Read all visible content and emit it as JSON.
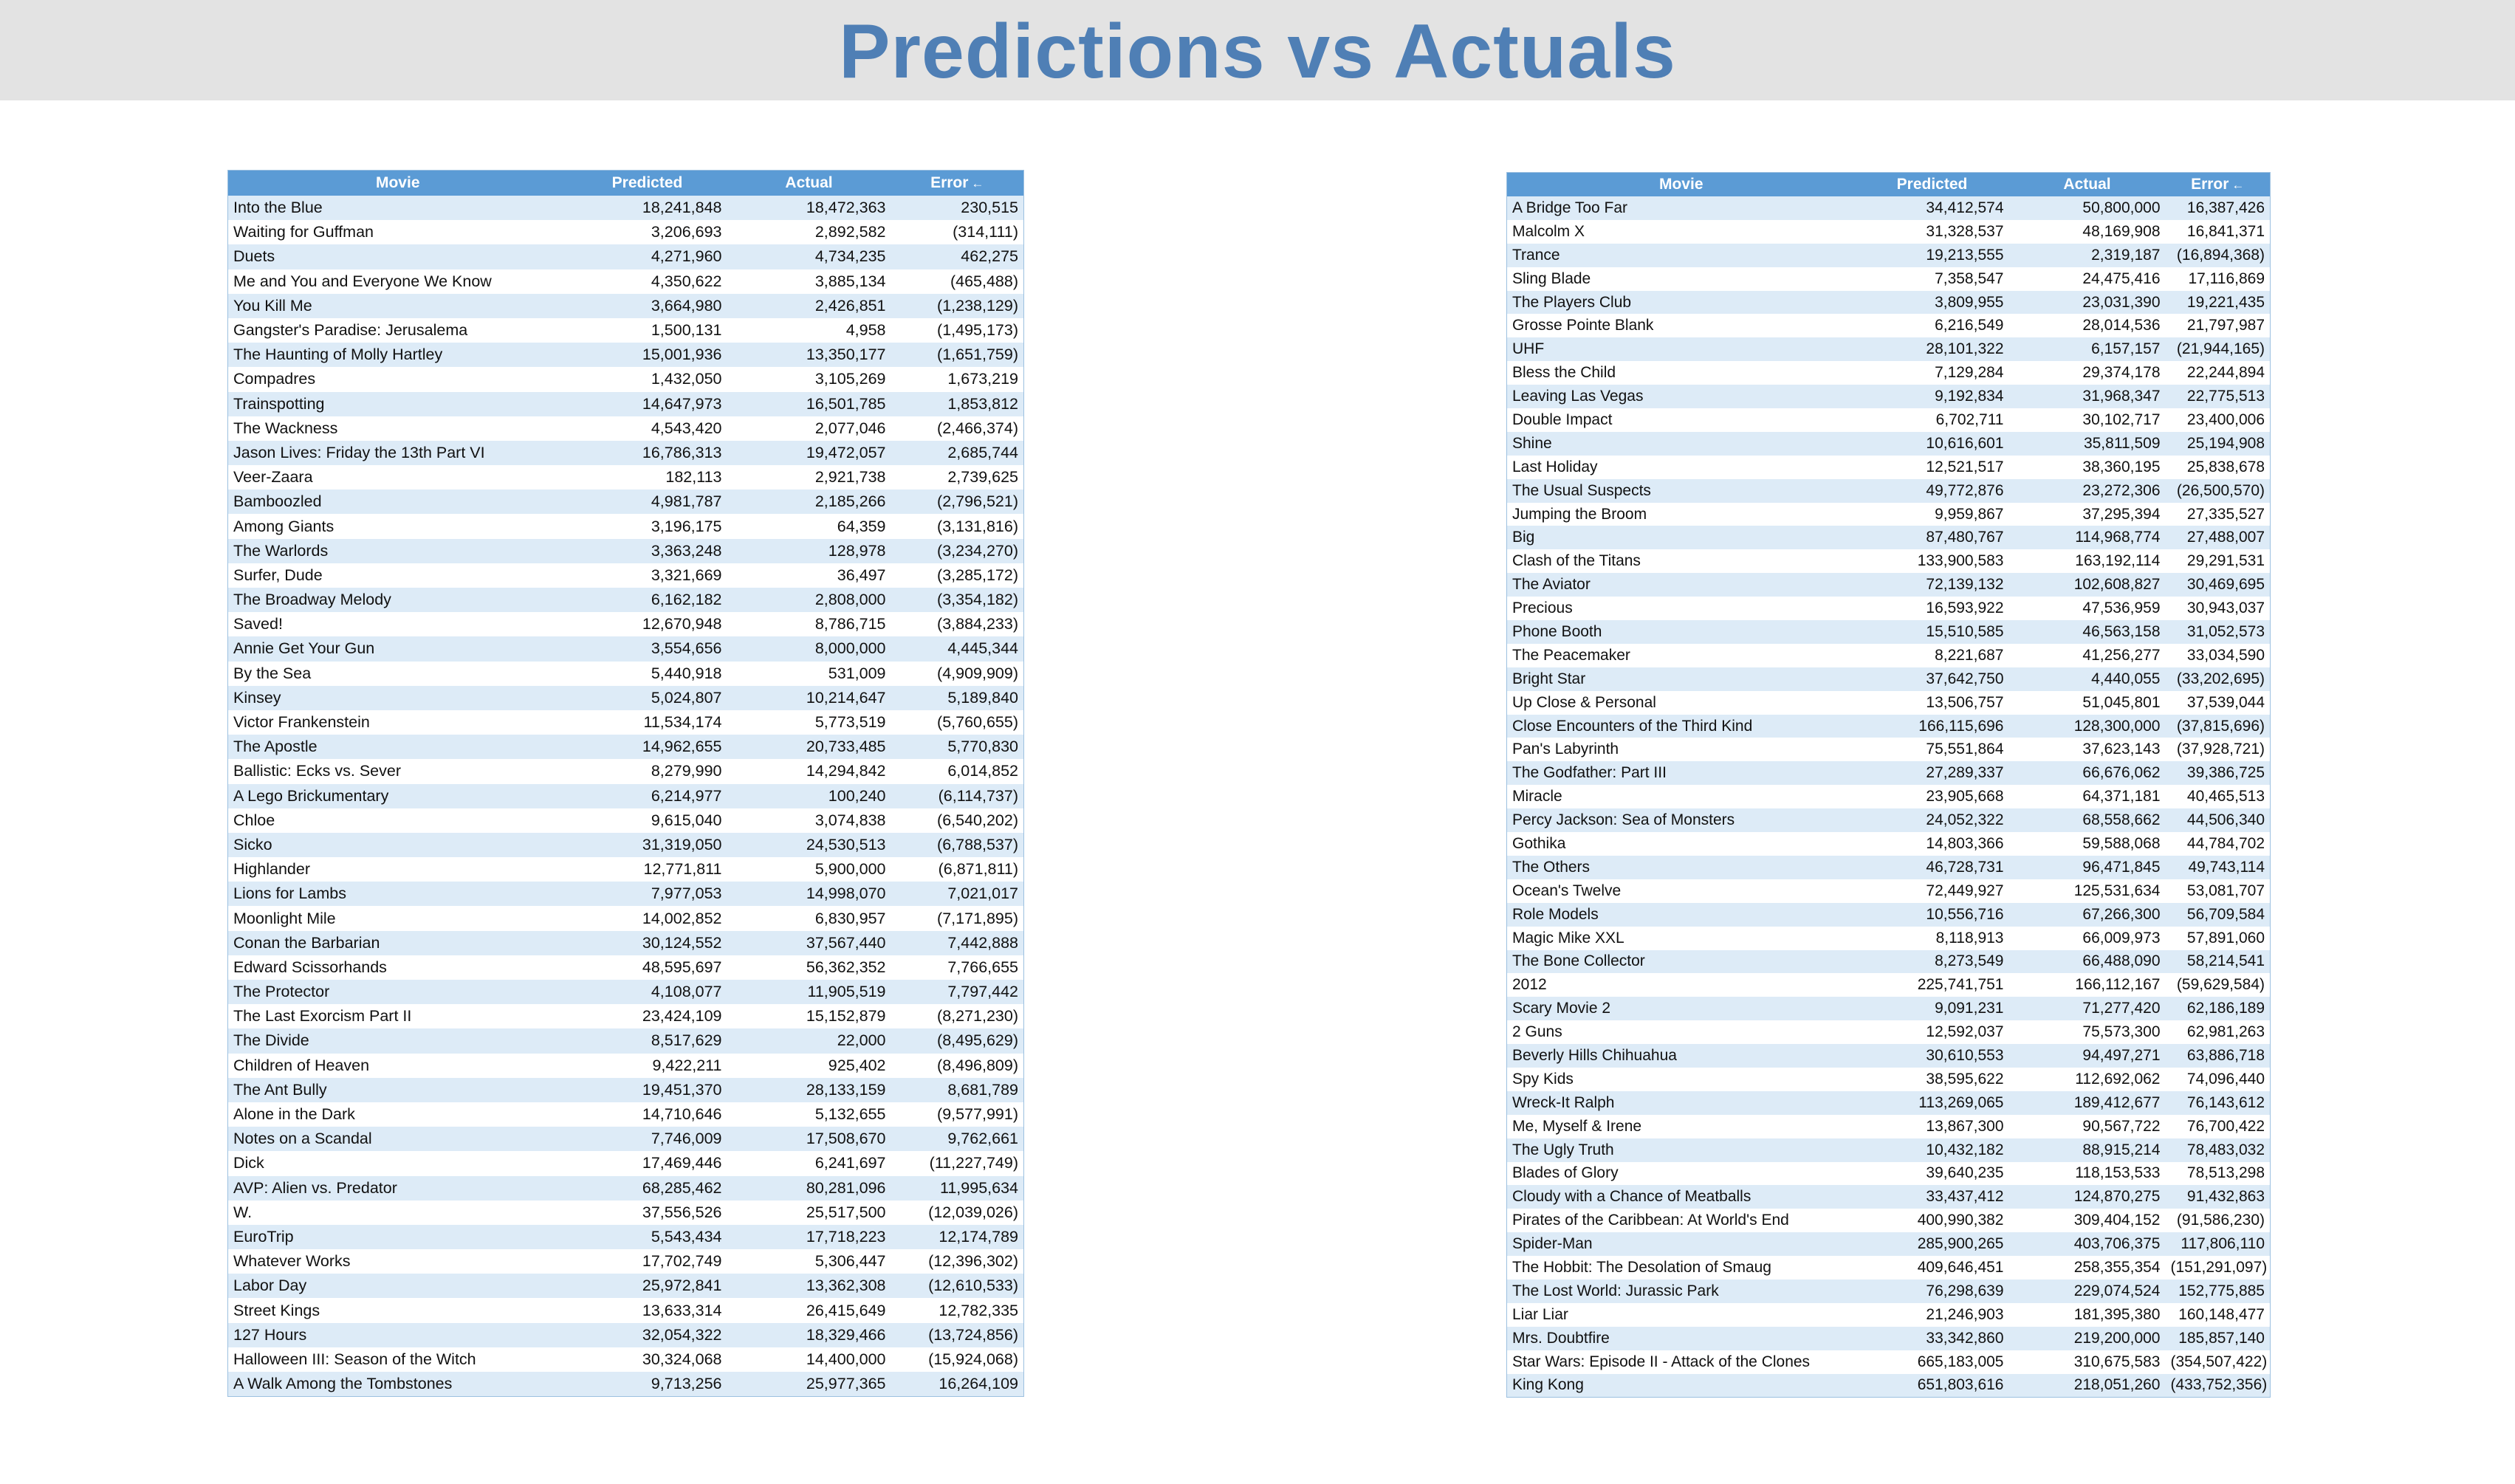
{
  "title": "Predictions vs Actuals",
  "headers": {
    "movie": "Movie",
    "predicted": "Predicted",
    "actual": "Actual",
    "error": "Error"
  },
  "left_rows": [
    [
      "Into the Blue",
      "18,241,848",
      "18,472,363",
      "230,515"
    ],
    [
      "Waiting for Guffman",
      "3,206,693",
      "2,892,582",
      "(314,111)"
    ],
    [
      "Duets",
      "4,271,960",
      "4,734,235",
      "462,275"
    ],
    [
      "Me and You and Everyone We Know",
      "4,350,622",
      "3,885,134",
      "(465,488)"
    ],
    [
      "You Kill Me",
      "3,664,980",
      "2,426,851",
      "(1,238,129)"
    ],
    [
      "Gangster's Paradise: Jerusalema",
      "1,500,131",
      "4,958",
      "(1,495,173)"
    ],
    [
      "The Haunting of Molly Hartley",
      "15,001,936",
      "13,350,177",
      "(1,651,759)"
    ],
    [
      "Compadres",
      "1,432,050",
      "3,105,269",
      "1,673,219"
    ],
    [
      "Trainspotting",
      "14,647,973",
      "16,501,785",
      "1,853,812"
    ],
    [
      "The Wackness",
      "4,543,420",
      "2,077,046",
      "(2,466,374)"
    ],
    [
      "Jason Lives: Friday the 13th Part VI",
      "16,786,313",
      "19,472,057",
      "2,685,744"
    ],
    [
      "Veer-Zaara",
      "182,113",
      "2,921,738",
      "2,739,625"
    ],
    [
      "Bamboozled",
      "4,981,787",
      "2,185,266",
      "(2,796,521)"
    ],
    [
      "Among Giants",
      "3,196,175",
      "64,359",
      "(3,131,816)"
    ],
    [
      "The Warlords",
      "3,363,248",
      "128,978",
      "(3,234,270)"
    ],
    [
      "Surfer, Dude",
      "3,321,669",
      "36,497",
      "(3,285,172)"
    ],
    [
      "The Broadway Melody",
      "6,162,182",
      "2,808,000",
      "(3,354,182)"
    ],
    [
      "Saved!",
      "12,670,948",
      "8,786,715",
      "(3,884,233)"
    ],
    [
      "Annie Get Your Gun",
      "3,554,656",
      "8,000,000",
      "4,445,344"
    ],
    [
      "By the Sea",
      "5,440,918",
      "531,009",
      "(4,909,909)"
    ],
    [
      "Kinsey",
      "5,024,807",
      "10,214,647",
      "5,189,840"
    ],
    [
      "Victor Frankenstein",
      "11,534,174",
      "5,773,519",
      "(5,760,655)"
    ],
    [
      "The Apostle",
      "14,962,655",
      "20,733,485",
      "5,770,830"
    ],
    [
      "Ballistic: Ecks vs. Sever",
      "8,279,990",
      "14,294,842",
      "6,014,852"
    ],
    [
      "A Lego Brickumentary",
      "6,214,977",
      "100,240",
      "(6,114,737)"
    ],
    [
      "Chloe",
      "9,615,040",
      "3,074,838",
      "(6,540,202)"
    ],
    [
      "Sicko",
      "31,319,050",
      "24,530,513",
      "(6,788,537)"
    ],
    [
      "Highlander",
      "12,771,811",
      "5,900,000",
      "(6,871,811)"
    ],
    [
      "Lions for Lambs",
      "7,977,053",
      "14,998,070",
      "7,021,017"
    ],
    [
      "Moonlight Mile",
      "14,002,852",
      "6,830,957",
      "(7,171,895)"
    ],
    [
      "Conan the Barbarian",
      "30,124,552",
      "37,567,440",
      "7,442,888"
    ],
    [
      "Edward Scissorhands",
      "48,595,697",
      "56,362,352",
      "7,766,655"
    ],
    [
      "The Protector",
      "4,108,077",
      "11,905,519",
      "7,797,442"
    ],
    [
      "The Last Exorcism Part II",
      "23,424,109",
      "15,152,879",
      "(8,271,230)"
    ],
    [
      "The Divide",
      "8,517,629",
      "22,000",
      "(8,495,629)"
    ],
    [
      "Children of Heaven",
      "9,422,211",
      "925,402",
      "(8,496,809)"
    ],
    [
      "The Ant Bully",
      "19,451,370",
      "28,133,159",
      "8,681,789"
    ],
    [
      "Alone in the Dark",
      "14,710,646",
      "5,132,655",
      "(9,577,991)"
    ],
    [
      "Notes on a Scandal",
      "7,746,009",
      "17,508,670",
      "9,762,661"
    ],
    [
      "Dick",
      "17,469,446",
      "6,241,697",
      "(11,227,749)"
    ],
    [
      "AVP: Alien vs. Predator",
      "68,285,462",
      "80,281,096",
      "11,995,634"
    ],
    [
      "W.",
      "37,556,526",
      "25,517,500",
      "(12,039,026)"
    ],
    [
      "EuroTrip",
      "5,543,434",
      "17,718,223",
      "12,174,789"
    ],
    [
      "Whatever Works",
      "17,702,749",
      "5,306,447",
      "(12,396,302)"
    ],
    [
      "Labor Day",
      "25,972,841",
      "13,362,308",
      "(12,610,533)"
    ],
    [
      "Street Kings",
      "13,633,314",
      "26,415,649",
      "12,782,335"
    ],
    [
      "127 Hours",
      "32,054,322",
      "18,329,466",
      "(13,724,856)"
    ],
    [
      "Halloween III: Season of the Witch",
      "30,324,068",
      "14,400,000",
      "(15,924,068)"
    ],
    [
      "A Walk Among the Tombstones",
      "9,713,256",
      "25,977,365",
      "16,264,109"
    ]
  ],
  "right_rows": [
    [
      "A Bridge Too Far",
      "34,412,574",
      "50,800,000",
      "16,387,426"
    ],
    [
      "Malcolm X",
      "31,328,537",
      "48,169,908",
      "16,841,371"
    ],
    [
      "Trance",
      "19,213,555",
      "2,319,187",
      "(16,894,368)"
    ],
    [
      "Sling Blade",
      "7,358,547",
      "24,475,416",
      "17,116,869"
    ],
    [
      "The Players Club",
      "3,809,955",
      "23,031,390",
      "19,221,435"
    ],
    [
      "Grosse Pointe Blank",
      "6,216,549",
      "28,014,536",
      "21,797,987"
    ],
    [
      "UHF",
      "28,101,322",
      "6,157,157",
      "(21,944,165)"
    ],
    [
      "Bless the Child",
      "7,129,284",
      "29,374,178",
      "22,244,894"
    ],
    [
      "Leaving Las Vegas",
      "9,192,834",
      "31,968,347",
      "22,775,513"
    ],
    [
      "Double Impact",
      "6,702,711",
      "30,102,717",
      "23,400,006"
    ],
    [
      "Shine",
      "10,616,601",
      "35,811,509",
      "25,194,908"
    ],
    [
      "Last Holiday",
      "12,521,517",
      "38,360,195",
      "25,838,678"
    ],
    [
      "The Usual Suspects",
      "49,772,876",
      "23,272,306",
      "(26,500,570)"
    ],
    [
      "Jumping the Broom",
      "9,959,867",
      "37,295,394",
      "27,335,527"
    ],
    [
      "Big",
      "87,480,767",
      "114,968,774",
      "27,488,007"
    ],
    [
      "Clash of the Titans",
      "133,900,583",
      "163,192,114",
      "29,291,531"
    ],
    [
      "The Aviator",
      "72,139,132",
      "102,608,827",
      "30,469,695"
    ],
    [
      "Precious",
      "16,593,922",
      "47,536,959",
      "30,943,037"
    ],
    [
      "Phone Booth",
      "15,510,585",
      "46,563,158",
      "31,052,573"
    ],
    [
      "The Peacemaker",
      "8,221,687",
      "41,256,277",
      "33,034,590"
    ],
    [
      "Bright Star",
      "37,642,750",
      "4,440,055",
      "(33,202,695)"
    ],
    [
      "Up Close & Personal",
      "13,506,757",
      "51,045,801",
      "37,539,044"
    ],
    [
      "Close Encounters of the Third Kind",
      "166,115,696",
      "128,300,000",
      "(37,815,696)"
    ],
    [
      "Pan's Labyrinth",
      "75,551,864",
      "37,623,143",
      "(37,928,721)"
    ],
    [
      "The Godfather: Part III",
      "27,289,337",
      "66,676,062",
      "39,386,725"
    ],
    [
      "Miracle",
      "23,905,668",
      "64,371,181",
      "40,465,513"
    ],
    [
      "Percy Jackson: Sea of Monsters",
      "24,052,322",
      "68,558,662",
      "44,506,340"
    ],
    [
      "Gothika",
      "14,803,366",
      "59,588,068",
      "44,784,702"
    ],
    [
      "The Others",
      "46,728,731",
      "96,471,845",
      "49,743,114"
    ],
    [
      "Ocean's Twelve",
      "72,449,927",
      "125,531,634",
      "53,081,707"
    ],
    [
      "Role Models",
      "10,556,716",
      "67,266,300",
      "56,709,584"
    ],
    [
      "Magic Mike XXL",
      "8,118,913",
      "66,009,973",
      "57,891,060"
    ],
    [
      "The Bone Collector",
      "8,273,549",
      "66,488,090",
      "58,214,541"
    ],
    [
      "2012",
      "225,741,751",
      "166,112,167",
      "(59,629,584)"
    ],
    [
      "Scary Movie 2",
      "9,091,231",
      "71,277,420",
      "62,186,189"
    ],
    [
      "2 Guns",
      "12,592,037",
      "75,573,300",
      "62,981,263"
    ],
    [
      "Beverly Hills Chihuahua",
      "30,610,553",
      "94,497,271",
      "63,886,718"
    ],
    [
      "Spy Kids",
      "38,595,622",
      "112,692,062",
      "74,096,440"
    ],
    [
      "Wreck-It Ralph",
      "113,269,065",
      "189,412,677",
      "76,143,612"
    ],
    [
      "Me, Myself & Irene",
      "13,867,300",
      "90,567,722",
      "76,700,422"
    ],
    [
      "The Ugly Truth",
      "10,432,182",
      "88,915,214",
      "78,483,032"
    ],
    [
      "Blades of Glory",
      "39,640,235",
      "118,153,533",
      "78,513,298"
    ],
    [
      "Cloudy with a Chance of Meatballs",
      "33,437,412",
      "124,870,275",
      "91,432,863"
    ],
    [
      "Pirates of the Caribbean: At World's End",
      "400,990,382",
      "309,404,152",
      "(91,586,230)"
    ],
    [
      "Spider-Man",
      "285,900,265",
      "403,706,375",
      "117,806,110"
    ],
    [
      "The Hobbit: The Desolation of Smaug",
      "409,646,451",
      "258,355,354",
      "(151,291,097)"
    ],
    [
      "The Lost World: Jurassic Park",
      "76,298,639",
      "229,074,524",
      "152,775,885"
    ],
    [
      "Liar Liar",
      "21,246,903",
      "181,395,380",
      "160,148,477"
    ],
    [
      "Mrs. Doubtfire",
      "33,342,860",
      "219,200,000",
      "185,857,140"
    ],
    [
      "Star Wars: Episode II - Attack of the Clones",
      "665,183,005",
      "310,675,583",
      "(354,507,422)"
    ],
    [
      "King Kong",
      "651,803,616",
      "218,051,260",
      "(433,752,356)"
    ]
  ]
}
